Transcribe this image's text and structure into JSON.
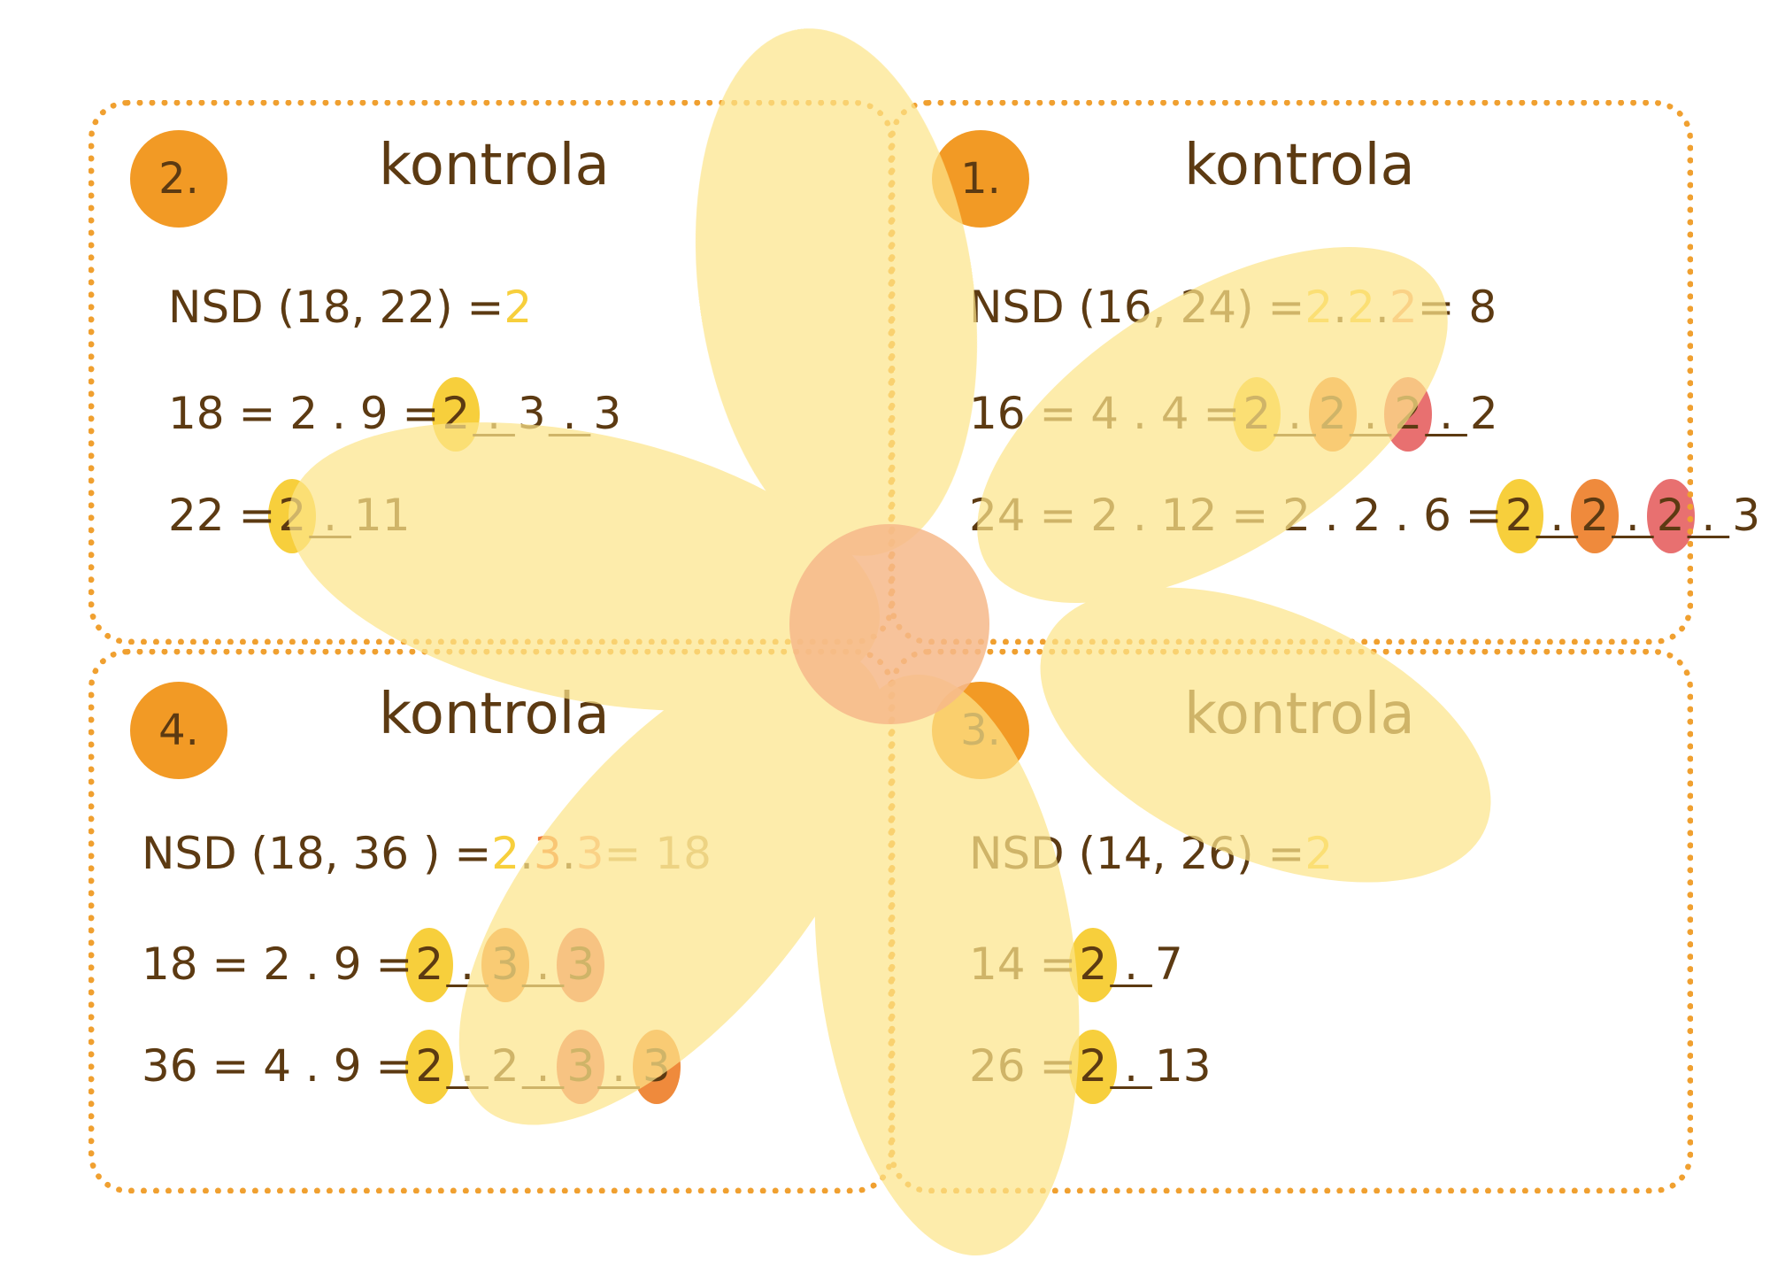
{
  "cards": [
    {
      "badge": "2.",
      "title": "kontrola",
      "gcd": {
        "label": "NSD (18, 22) = ",
        "answer": [
          "2"
        ]
      },
      "rows": [
        {
          "lhs": "18 = 2 . 9 = ",
          "factors": [
            "2",
            " . ",
            "3",
            " . ",
            "3"
          ]
        },
        {
          "lhs": "22 = ",
          "factors": [
            "2",
            " . ",
            "11"
          ]
        }
      ]
    },
    {
      "badge": "1.",
      "title": "kontrola",
      "gcd": {
        "label": "NSD (16, 24) = ",
        "answer": [
          "2",
          " . ",
          "2",
          " . ",
          "2",
          " = 8"
        ]
      },
      "rows": [
        {
          "lhs": "16 = 4 . 4 = ",
          "factors": [
            "2",
            " . ",
            "2",
            " . ",
            "2",
            " . ",
            "2"
          ]
        },
        {
          "lhs": "24 = 2 . 12 = 2 . 2 . 6 = ",
          "factors": [
            "2",
            " . ",
            "2",
            " . ",
            "2",
            " . ",
            "3"
          ]
        }
      ]
    },
    {
      "badge": "4.",
      "title": "kontrola",
      "gcd": {
        "label": "NSD (18, 36 ) = ",
        "answer": [
          "2",
          " . ",
          "3",
          " . ",
          "3",
          " = 18"
        ]
      },
      "rows": [
        {
          "lhs": "18 = 2 . 9 = ",
          "factors": [
            "2",
            " . ",
            "3",
            " . ",
            "3"
          ]
        },
        {
          "lhs": "36 = 4 . 9 = ",
          "factors": [
            "2",
            " . ",
            "2",
            " . ",
            "3",
            " . ",
            "3"
          ]
        }
      ]
    },
    {
      "badge": "3.",
      "title": "kontrola",
      "gcd": {
        "label": "NSD (14, 26) = ",
        "answer": [
          "2"
        ]
      },
      "rows": [
        {
          "lhs": "14 = ",
          "factors": [
            "2",
            " . ",
            "7"
          ]
        },
        {
          "lhs": "26 = ",
          "factors": [
            "2",
            " . ",
            "13"
          ]
        }
      ]
    }
  ],
  "colors": {
    "border": "#f0a030",
    "badge": "#f29a25",
    "text": "#5c3a12",
    "petal": "#fde58a",
    "center": "#f6b98a",
    "highlight_yellow": "#f7cf3c",
    "highlight_orange": "#ef8a3c",
    "highlight_red": "#e87070"
  }
}
